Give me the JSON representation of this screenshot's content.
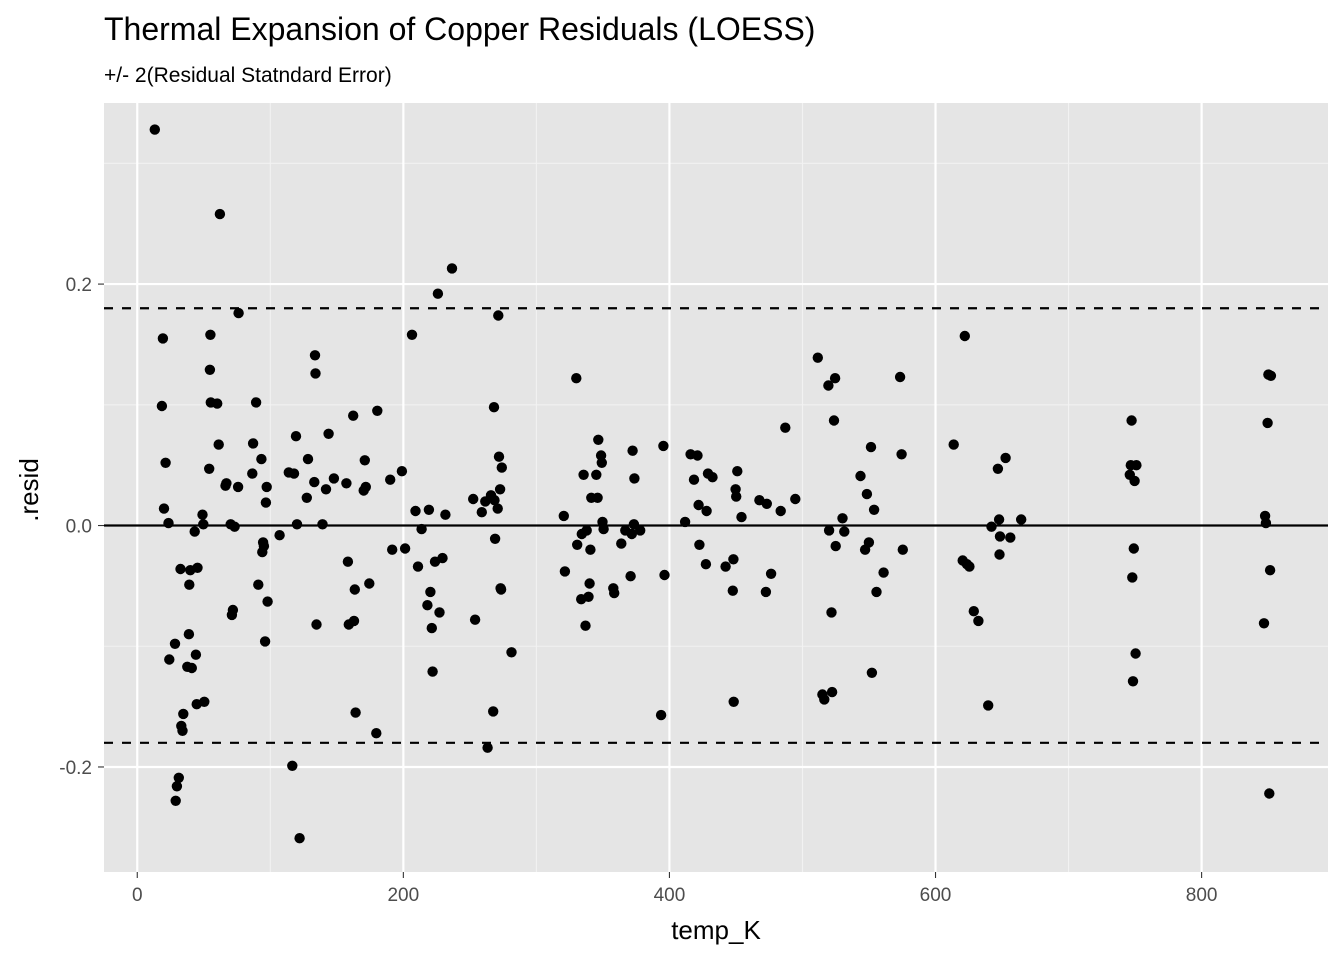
{
  "colors": {
    "panel": "#e5e5e5",
    "grid_major": "#ffffff",
    "grid_minor": "#f2f2f2",
    "points": "#000000",
    "reference_lines": "#000000",
    "tick_text": "#4d4d4d"
  },
  "chart_data": {
    "type": "scatter",
    "title": "Thermal Expansion of Copper Residuals (LOESS)",
    "subtitle": "+/- 2(Residual Statndard Error)",
    "xlabel": "temp_K",
    "ylabel": ".resid",
    "xlim": [
      -25,
      895
    ],
    "ylim": [
      -0.287,
      0.35
    ],
    "x_ticks": [
      0,
      200,
      400,
      600,
      800
    ],
    "x_tick_labels": [
      "0",
      "200",
      "400",
      "600",
      "800"
    ],
    "y_ticks": [
      -0.2,
      0.0,
      0.2
    ],
    "y_tick_labels": [
      "-0.2",
      "0.0",
      "0.2"
    ],
    "grid": true,
    "legend": "none",
    "reference_lines": [
      {
        "y": 0.18,
        "style": "dashed"
      },
      {
        "y": -0.18,
        "style": "dashed"
      },
      {
        "y": 0.0,
        "style": "solid"
      }
    ],
    "points": [
      [
        13.2,
        0.328
      ],
      [
        18.5,
        0.099
      ],
      [
        19.3,
        0.155
      ],
      [
        20.1,
        0.014
      ],
      [
        21.3,
        0.052
      ],
      [
        23.5,
        0.002
      ],
      [
        24.1,
        -0.111
      ],
      [
        28.4,
        -0.098
      ],
      [
        28.9,
        -0.228
      ],
      [
        29.8,
        -0.216
      ],
      [
        31.2,
        -0.209
      ],
      [
        32.5,
        -0.036
      ],
      [
        33.1,
        -0.166
      ],
      [
        34.0,
        -0.17
      ],
      [
        34.6,
        -0.156
      ],
      [
        37.6,
        -0.117
      ],
      [
        38.8,
        -0.09
      ],
      [
        39.1,
        -0.049
      ],
      [
        39.9,
        -0.037
      ],
      [
        41.0,
        -0.118
      ],
      [
        43.2,
        -0.005
      ],
      [
        44.1,
        -0.107
      ],
      [
        44.7,
        -0.148
      ],
      [
        45.3,
        -0.035
      ],
      [
        49.0,
        0.009
      ],
      [
        49.6,
        0.001
      ],
      [
        50.4,
        -0.146
      ],
      [
        54.1,
        0.047
      ],
      [
        54.6,
        0.129
      ],
      [
        55.0,
        0.158
      ],
      [
        55.3,
        0.102
      ],
      [
        60.1,
        0.101
      ],
      [
        61.2,
        0.067
      ],
      [
        62.1,
        0.258
      ],
      [
        66.3,
        0.033
      ],
      [
        67.0,
        0.035
      ],
      [
        70.2,
        0.001
      ],
      [
        71.1,
        -0.074
      ],
      [
        71.9,
        -0.07
      ],
      [
        73.2,
        -0.001
      ],
      [
        75.8,
        0.032
      ],
      [
        76.2,
        0.176
      ],
      [
        86.5,
        0.043
      ],
      [
        87.1,
        0.068
      ],
      [
        89.3,
        0.102
      ],
      [
        91.0,
        -0.049
      ],
      [
        93.3,
        0.055
      ],
      [
        94.0,
        -0.022
      ],
      [
        94.6,
        -0.014
      ],
      [
        95.2,
        -0.017
      ],
      [
        96.1,
        -0.096
      ],
      [
        96.7,
        0.019
      ],
      [
        97.3,
        0.032
      ],
      [
        98.0,
        -0.063
      ],
      [
        107.0,
        -0.008
      ],
      [
        113.9,
        0.044
      ],
      [
        116.5,
        -0.199
      ],
      [
        117.8,
        0.043
      ],
      [
        119.3,
        0.074
      ],
      [
        120.1,
        0.001
      ],
      [
        122.0,
        -0.259
      ],
      [
        127.4,
        0.023
      ],
      [
        128.3,
        0.055
      ],
      [
        133.1,
        0.036
      ],
      [
        133.6,
        0.141
      ],
      [
        134.0,
        0.126
      ],
      [
        134.7,
        -0.082
      ],
      [
        139.2,
        0.001
      ],
      [
        141.9,
        0.03
      ],
      [
        143.8,
        0.076
      ],
      [
        147.8,
        0.039
      ],
      [
        157.2,
        0.035
      ],
      [
        158.3,
        -0.03
      ],
      [
        159.0,
        -0.082
      ],
      [
        162.3,
        0.091
      ],
      [
        162.9,
        -0.079
      ],
      [
        163.5,
        -0.053
      ],
      [
        164.1,
        -0.155
      ],
      [
        170.2,
        0.029
      ],
      [
        171.0,
        0.054
      ],
      [
        171.8,
        0.032
      ],
      [
        174.4,
        -0.048
      ],
      [
        179.7,
        -0.172
      ],
      [
        180.4,
        0.095
      ],
      [
        190.1,
        0.038
      ],
      [
        191.6,
        -0.02
      ],
      [
        198.9,
        0.045
      ],
      [
        201.3,
        -0.019
      ],
      [
        206.5,
        0.158
      ],
      [
        209.1,
        0.012
      ],
      [
        211.0,
        -0.034
      ],
      [
        213.7,
        -0.003
      ],
      [
        218.1,
        -0.066
      ],
      [
        219.2,
        0.013
      ],
      [
        220.3,
        -0.055
      ],
      [
        221.4,
        -0.085
      ],
      [
        222.0,
        -0.121
      ],
      [
        223.8,
        -0.03
      ],
      [
        226.0,
        0.192
      ],
      [
        227.2,
        -0.072
      ],
      [
        229.4,
        -0.027
      ],
      [
        231.6,
        0.009
      ],
      [
        236.6,
        0.213
      ],
      [
        252.5,
        0.022
      ],
      [
        253.9,
        -0.078
      ],
      [
        259.0,
        0.011
      ],
      [
        261.6,
        0.02
      ],
      [
        263.3,
        -0.184
      ],
      [
        265.9,
        0.025
      ],
      [
        267.5,
        -0.154
      ],
      [
        268.1,
        0.098
      ],
      [
        268.5,
        0.021
      ],
      [
        269.0,
        -0.011
      ],
      [
        270.9,
        0.014
      ],
      [
        271.4,
        0.174
      ],
      [
        271.9,
        0.057
      ],
      [
        272.7,
        0.03
      ],
      [
        273.1,
        -0.052
      ],
      [
        273.5,
        -0.053
      ],
      [
        274.0,
        0.048
      ],
      [
        281.3,
        -0.105
      ],
      [
        320.6,
        0.008
      ],
      [
        321.4,
        -0.038
      ],
      [
        330.0,
        0.122
      ],
      [
        330.7,
        -0.016
      ],
      [
        333.7,
        -0.061
      ],
      [
        334.1,
        -0.007
      ],
      [
        335.5,
        0.042
      ],
      [
        336.9,
        -0.083
      ],
      [
        337.8,
        -0.004
      ],
      [
        339.2,
        -0.059
      ],
      [
        340.0,
        -0.048
      ],
      [
        340.6,
        -0.02
      ],
      [
        341.3,
        0.023
      ],
      [
        345.0,
        0.042
      ],
      [
        346.0,
        0.023
      ],
      [
        346.5,
        0.071
      ],
      [
        348.6,
        0.058
      ],
      [
        349.2,
        0.052
      ],
      [
        349.7,
        0.003
      ],
      [
        350.5,
        -0.003
      ],
      [
        357.8,
        -0.052
      ],
      [
        358.5,
        -0.056
      ],
      [
        363.8,
        -0.015
      ],
      [
        366.8,
        -0.004
      ],
      [
        370.8,
        -0.042
      ],
      [
        371.7,
        -0.007
      ],
      [
        372.3,
        0.062
      ],
      [
        373.3,
        0.001
      ],
      [
        373.7,
        0.039
      ],
      [
        378.0,
        -0.004
      ],
      [
        393.7,
        -0.157
      ],
      [
        395.5,
        0.066
      ],
      [
        396.3,
        -0.041
      ],
      [
        411.8,
        0.003
      ],
      [
        415.9,
        0.059
      ],
      [
        418.5,
        0.038
      ],
      [
        421.1,
        0.058
      ],
      [
        421.9,
        0.017
      ],
      [
        422.5,
        -0.016
      ],
      [
        427.4,
        -0.032
      ],
      [
        427.9,
        0.012
      ],
      [
        429.0,
        0.043
      ],
      [
        432.4,
        0.04
      ],
      [
        442.2,
        -0.034
      ],
      [
        447.6,
        -0.054
      ],
      [
        448.1,
        -0.028
      ],
      [
        448.3,
        -0.146
      ],
      [
        449.7,
        0.03
      ],
      [
        450.2,
        0.024
      ],
      [
        451.0,
        0.045
      ],
      [
        454.2,
        0.007
      ],
      [
        467.6,
        0.021
      ],
      [
        472.5,
        -0.055
      ],
      [
        473.2,
        0.018
      ],
      [
        476.4,
        -0.04
      ],
      [
        483.6,
        0.012
      ],
      [
        487.1,
        0.081
      ],
      [
        494.6,
        0.022
      ],
      [
        511.5,
        0.139
      ],
      [
        515.0,
        -0.14
      ],
      [
        516.4,
        -0.144
      ],
      [
        519.5,
        0.116
      ],
      [
        520.0,
        -0.004
      ],
      [
        521.8,
        -0.072
      ],
      [
        522.3,
        -0.138
      ],
      [
        523.7,
        0.087
      ],
      [
        524.5,
        0.122
      ],
      [
        525.0,
        -0.017
      ],
      [
        530.1,
        0.006
      ],
      [
        531.4,
        -0.005
      ],
      [
        543.6,
        0.041
      ],
      [
        547.1,
        -0.02
      ],
      [
        548.4,
        0.026
      ],
      [
        549.9,
        -0.014
      ],
      [
        551.5,
        0.065
      ],
      [
        552.2,
        -0.122
      ],
      [
        553.8,
        0.013
      ],
      [
        555.6,
        -0.055
      ],
      [
        561.0,
        -0.039
      ],
      [
        573.4,
        0.123
      ],
      [
        574.5,
        0.059
      ],
      [
        575.4,
        -0.02
      ],
      [
        613.7,
        0.067
      ],
      [
        620.4,
        -0.029
      ],
      [
        622.0,
        0.157
      ],
      [
        623.6,
        -0.032
      ],
      [
        625.5,
        -0.034
      ],
      [
        628.8,
        -0.071
      ],
      [
        632.2,
        -0.079
      ],
      [
        639.6,
        -0.149
      ],
      [
        642.1,
        -0.001
      ],
      [
        646.9,
        0.047
      ],
      [
        647.8,
        0.005
      ],
      [
        648.1,
        -0.024
      ],
      [
        648.5,
        -0.009
      ],
      [
        652.7,
        0.056
      ],
      [
        656.2,
        -0.01
      ],
      [
        664.4,
        0.005
      ],
      [
        746.0,
        0.042
      ],
      [
        746.8,
        0.05
      ],
      [
        747.4,
        0.087
      ],
      [
        747.9,
        -0.043
      ],
      [
        748.4,
        -0.129
      ],
      [
        749.0,
        -0.019
      ],
      [
        749.6,
        0.037
      ],
      [
        750.4,
        -0.106
      ],
      [
        751.0,
        0.05
      ],
      [
        846.9,
        -0.081
      ],
      [
        847.7,
        0.008
      ],
      [
        848.3,
        0.002
      ],
      [
        849.6,
        0.085
      ],
      [
        850.2,
        0.125
      ],
      [
        850.9,
        -0.222
      ],
      [
        851.5,
        -0.037
      ],
      [
        852.1,
        0.124
      ]
    ]
  }
}
